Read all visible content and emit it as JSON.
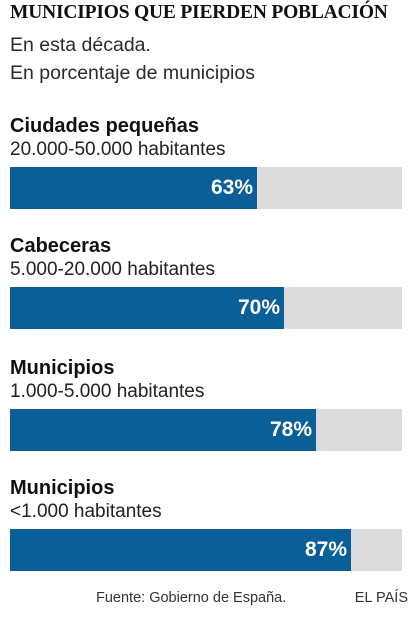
{
  "title": "MUNICIPIOS QUE PIERDEN POBLACIÓN",
  "subtitle_lines": [
    "En esta década.",
    "En porcentaje de municipios"
  ],
  "chart_data": {
    "type": "bar",
    "orientation": "horizontal",
    "categories": [
      {
        "name": "Ciudades pequeñas",
        "range": "20.000-50.000 habitantes"
      },
      {
        "name": "Cabeceras",
        "range": "5.000-20.000 habitantes"
      },
      {
        "name": "Municipios",
        "range": "1.000-5.000 habitantes"
      },
      {
        "name": "Municipios",
        "range": "<1.000 habitantes"
      }
    ],
    "values": [
      63,
      70,
      78,
      87
    ],
    "value_labels": [
      "63%",
      "70%",
      "78%",
      "87%"
    ],
    "xlim": [
      0,
      100
    ],
    "grid": false
  },
  "colors": {
    "bar": "#0b5f98",
    "track": "#dcdcdc",
    "value_text": "#ffffff"
  },
  "source": "Fuente: Gobierno de España.",
  "brand": "EL PAÍS"
}
